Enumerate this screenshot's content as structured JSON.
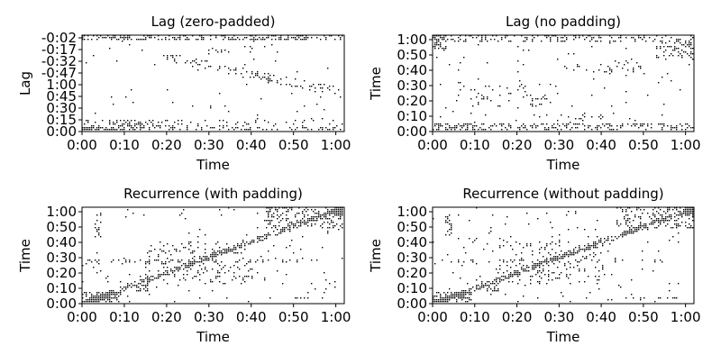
{
  "figure": {
    "background": "#ffffff",
    "mark_color": "#000000"
  },
  "chart_data": [
    {
      "type": "heatmap",
      "title": "Lag (zero-padded)",
      "xlabel": "Time",
      "ylabel": "Lag",
      "x_ticks": [
        "0:00",
        "0:10",
        "0:20",
        "0:30",
        "0:40",
        "0:50",
        "1:00"
      ],
      "y_ticks": [
        "0:00",
        "0:15",
        "0:30",
        "0:45",
        "1:00",
        "-0:47",
        "-0:32",
        "-0:17",
        "-0:02"
      ],
      "x_range_seconds": [
        0,
        62
      ],
      "values": "binary recurrence pattern (black = 1, white = 0)",
      "pattern": "lag",
      "seed": 11
    },
    {
      "type": "heatmap",
      "title": "Lag (no padding)",
      "xlabel": "Time",
      "ylabel": "Time",
      "x_ticks": [
        "0:00",
        "0:10",
        "0:20",
        "0:30",
        "0:40",
        "0:50",
        "1:00"
      ],
      "y_ticks": [
        "0:00",
        "0:10",
        "0:20",
        "0:30",
        "0:40",
        "0:50",
        "1:00"
      ],
      "x_range_seconds": [
        0,
        62
      ],
      "y_range_seconds": [
        0,
        62
      ],
      "values": "binary recurrence pattern (black = 1, white = 0)",
      "pattern": "lagnopad",
      "seed": 23
    },
    {
      "type": "heatmap",
      "title": "Recurrence (with padding)",
      "xlabel": "Time",
      "ylabel": "Time",
      "x_ticks": [
        "0:00",
        "0:10",
        "0:20",
        "0:30",
        "0:40",
        "0:50",
        "1:00"
      ],
      "y_ticks": [
        "0:00",
        "0:10",
        "0:20",
        "0:30",
        "0:40",
        "0:50",
        "1:00"
      ],
      "x_range_seconds": [
        0,
        62
      ],
      "y_range_seconds": [
        0,
        62
      ],
      "values": "binary recurrence pattern (black = 1, white = 0)",
      "pattern": "rec",
      "seed": 37
    },
    {
      "type": "heatmap",
      "title": "Recurrence (without padding)",
      "xlabel": "Time",
      "ylabel": "Time",
      "x_ticks": [
        "0:00",
        "0:10",
        "0:20",
        "0:30",
        "0:40",
        "0:50",
        "1:00"
      ],
      "y_ticks": [
        "0:00",
        "0:10",
        "0:20",
        "0:30",
        "0:40",
        "0:50",
        "1:00"
      ],
      "x_range_seconds": [
        0,
        62
      ],
      "y_range_seconds": [
        0,
        62
      ],
      "values": "binary recurrence pattern (black = 1, white = 0)",
      "pattern": "rec",
      "seed": 41
    }
  ]
}
